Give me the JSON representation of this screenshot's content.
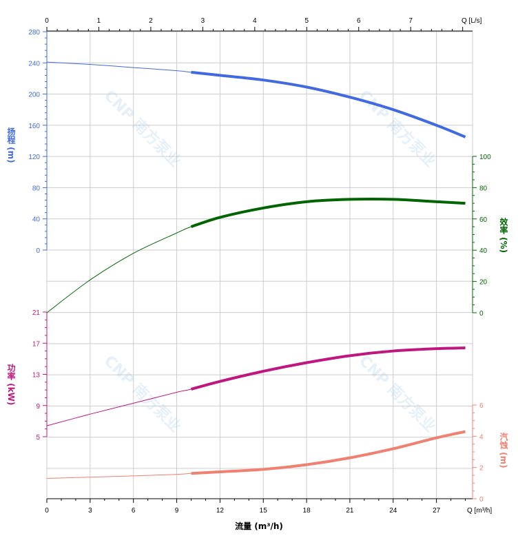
{
  "chart_data": {
    "type": "line",
    "title": "",
    "xlabel": "流量 (m³/h)",
    "x_bottom": {
      "ticks": [
        "0",
        "3",
        "6",
        "9",
        "12",
        "15",
        "18",
        "21",
        "24",
        "27"
      ],
      "unit_label": "Q [m³/h]",
      "range": [
        0,
        29.5
      ]
    },
    "x_top": {
      "ticks": [
        "0",
        "1",
        "2",
        "3",
        "4",
        "5",
        "6",
        "7"
      ],
      "unit_label": "Q [L/s]",
      "range": [
        0,
        8.19
      ]
    },
    "axes": {
      "head": {
        "label": "扬程 (m)",
        "ticks": [
          "0",
          "40",
          "80",
          "120",
          "160",
          "200",
          "240",
          "280"
        ],
        "range": [
          0,
          280
        ],
        "color": "#4169e1"
      },
      "efficiency": {
        "label": "效率 (%)",
        "ticks": [
          "0",
          "20",
          "40",
          "60",
          "80",
          "100"
        ],
        "range": [
          0,
          100
        ],
        "color": "#006400"
      },
      "power": {
        "label": "功率 (kW)",
        "ticks": [
          "5",
          "9",
          "13",
          "17",
          "21"
        ],
        "range": [
          5,
          21
        ],
        "color": "#c0167f"
      },
      "npsh": {
        "label": "汽蚀 (m)",
        "ticks": [
          "0",
          "2",
          "4",
          "6"
        ],
        "range": [
          0,
          6
        ],
        "color": "#f08070"
      }
    },
    "grid": true,
    "series": [
      {
        "key": "head",
        "color": "#4169e1",
        "x": [
          0,
          3,
          6,
          9,
          10,
          12,
          15,
          18,
          21,
          24,
          27,
          29
        ],
        "y": [
          241,
          238,
          234,
          230,
          228,
          224,
          218,
          209,
          196,
          180,
          160,
          145
        ]
      },
      {
        "key": "efficiency",
        "color": "#006400",
        "x": [
          0,
          3,
          6,
          9,
          10,
          12,
          15,
          18,
          21,
          24,
          27,
          29
        ],
        "y": [
          0,
          21,
          38,
          51,
          55,
          61,
          67,
          71,
          72.5,
          72.5,
          71,
          70
        ]
      },
      {
        "key": "power",
        "color": "#c0167f",
        "x": [
          0,
          3,
          6,
          9,
          10,
          12,
          15,
          18,
          21,
          24,
          27,
          29
        ],
        "y": [
          6.4,
          7.9,
          9.3,
          10.7,
          11.1,
          12.1,
          13.4,
          14.5,
          15.4,
          16.0,
          16.3,
          16.4
        ]
      },
      {
        "key": "npsh",
        "color": "#f08070",
        "x": [
          0,
          3,
          6,
          9,
          10,
          12,
          15,
          18,
          21,
          24,
          27,
          29
        ],
        "y": [
          1.3,
          1.38,
          1.46,
          1.56,
          1.62,
          1.72,
          1.88,
          2.18,
          2.62,
          3.2,
          3.9,
          4.3
        ]
      }
    ],
    "bold_range_x": [
      10,
      29
    ],
    "watermark": "CNP 南方泵业"
  }
}
